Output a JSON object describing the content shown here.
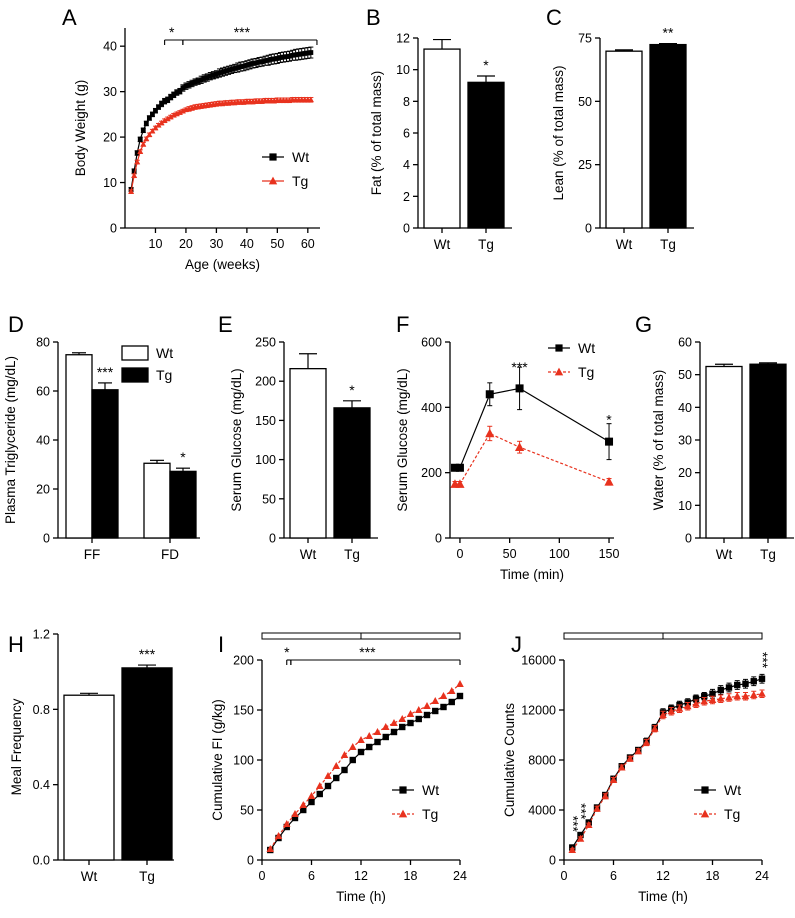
{
  "colors": {
    "wt": "#000000",
    "tg": "#e8321e",
    "axis": "#000000",
    "bar_wt": "#ffffff",
    "bar_tg": "#000000"
  },
  "chart_data": [
    {
      "id": "A",
      "letter": "A",
      "type": "line",
      "xlabel": "Age (weeks)",
      "ylabel": "Body Weight (g)",
      "xlim": [
        0,
        64
      ],
      "ylim": [
        0,
        44
      ],
      "xticks": [
        10,
        20,
        30,
        40,
        50,
        60
      ],
      "yticks": [
        0,
        10,
        20,
        30,
        40
      ],
      "series": [
        {
          "name": "Wt",
          "color": "#000000",
          "marker": "square",
          "dashed": false,
          "x": [
            2,
            3,
            4,
            5,
            6,
            7,
            8,
            9,
            10,
            11,
            12,
            13,
            14,
            15,
            16,
            17,
            18,
            19,
            20,
            21,
            22,
            23,
            24,
            25,
            26,
            27,
            28,
            29,
            30,
            31,
            32,
            33,
            34,
            35,
            36,
            37,
            38,
            39,
            40,
            41,
            42,
            43,
            44,
            45,
            46,
            47,
            48,
            49,
            50,
            51,
            52,
            53,
            54,
            55,
            56,
            57,
            58,
            59,
            60,
            61
          ],
          "y": [
            8.5,
            12.5,
            16.5,
            19.5,
            21.5,
            23,
            24.2,
            25,
            25.8,
            26.6,
            27.3,
            27.9,
            28.2,
            28.8,
            29.3,
            29.8,
            30.1,
            30.8,
            31.2,
            31.5,
            31.8,
            32.1,
            32.3,
            32.6,
            32.9,
            33.1,
            33.4,
            33.6,
            33.8,
            34.1,
            34.3,
            34.5,
            34.7,
            34.9,
            35.1,
            35.3,
            35.5,
            35.6,
            35.8,
            36,
            36.2,
            36.3,
            36.5,
            36.6,
            36.8,
            36.9,
            37.1,
            37.2,
            37.3,
            37.5,
            37.6,
            37.7,
            37.8,
            38,
            38.1,
            38.2,
            38.3,
            38.4,
            38.5,
            38.6
          ],
          "err": [
            0.4,
            0.5,
            0.5,
            0.5,
            0.5,
            0.5,
            0.5,
            0.5,
            0.5,
            0.5,
            0.6,
            0.6,
            0.6,
            0.6,
            0.6,
            0.6,
            0.6,
            0.7,
            0.7,
            0.7,
            0.7,
            0.7,
            0.7,
            0.8,
            0.8,
            0.8,
            0.8,
            0.8,
            0.8,
            0.9,
            0.9,
            0.9,
            0.9,
            0.9,
            0.9,
            1,
            1,
            1,
            1,
            1,
            1,
            1,
            1,
            1,
            1,
            1.1,
            1.1,
            1.1,
            1.1,
            1.1,
            1.1,
            1.1,
            1.1,
            1.1,
            1.2,
            1.2,
            1.2,
            1.2,
            1.2,
            1.2
          ]
        },
        {
          "name": "Tg",
          "color": "#e8321e",
          "marker": "triangle",
          "dashed": false,
          "x": [
            2,
            3,
            4,
            5,
            6,
            7,
            8,
            9,
            10,
            11,
            12,
            13,
            14,
            15,
            16,
            17,
            18,
            19,
            20,
            21,
            22,
            23,
            24,
            25,
            26,
            27,
            28,
            29,
            30,
            31,
            32,
            33,
            34,
            35,
            36,
            37,
            38,
            39,
            40,
            41,
            42,
            43,
            44,
            45,
            46,
            47,
            48,
            49,
            50,
            51,
            52,
            53,
            54,
            55,
            56,
            57,
            58,
            59,
            60,
            61
          ],
          "y": [
            8,
            11.5,
            14.5,
            16.8,
            18.4,
            19.6,
            20.5,
            21.3,
            22,
            22.6,
            23.1,
            23.6,
            24,
            24.4,
            24.8,
            25.1,
            25.4,
            25.7,
            26,
            26.2,
            26.4,
            26.6,
            26.7,
            26.8,
            26.9,
            27,
            27.1,
            27.2,
            27.3,
            27.4,
            27.4,
            27.5,
            27.5,
            27.6,
            27.6,
            27.7,
            27.7,
            27.7,
            27.8,
            27.8,
            27.8,
            27.9,
            27.9,
            27.9,
            28,
            28,
            28,
            28,
            28.1,
            28.1,
            28.1,
            28.1,
            28.1,
            28.2,
            28.2,
            28.2,
            28.2,
            28.2,
            28.2,
            28.2
          ],
          "err": [
            0.4,
            0.4,
            0.4,
            0.4,
            0.4,
            0.4,
            0.4,
            0.4,
            0.4,
            0.4,
            0.4,
            0.4,
            0.4,
            0.4,
            0.4,
            0.4,
            0.4,
            0.4,
            0.4,
            0.5,
            0.5,
            0.5,
            0.5,
            0.5,
            0.5,
            0.5,
            0.5,
            0.5,
            0.5,
            0.5,
            0.5,
            0.5,
            0.5,
            0.5,
            0.5,
            0.5,
            0.5,
            0.5,
            0.5,
            0.5,
            0.5,
            0.5,
            0.5,
            0.5,
            0.5,
            0.5,
            0.5,
            0.5,
            0.5,
            0.5,
            0.5,
            0.5,
            0.5,
            0.5,
            0.5,
            0.5,
            0.5,
            0.5,
            0.5,
            0.5
          ]
        }
      ],
      "significance": [
        {
          "text": "*",
          "x_from": 13,
          "x_to": 19
        },
        {
          "text": "***",
          "x_from": 19,
          "x_to": 63
        }
      ],
      "legend": "bottom-right"
    },
    {
      "id": "B",
      "letter": "B",
      "type": "bar",
      "categories": [
        "Wt",
        "Tg"
      ],
      "values": [
        11.3,
        9.2
      ],
      "errors": [
        0.6,
        0.4
      ],
      "ylabel": "Fat (% of total mass)",
      "ylim": [
        0,
        12
      ],
      "yticks": [
        0,
        2,
        4,
        6,
        8,
        10,
        12
      ],
      "stars": [
        "",
        "*"
      ]
    },
    {
      "id": "C",
      "letter": "C",
      "type": "bar",
      "categories": [
        "Wt",
        "Tg"
      ],
      "values": [
        69.8,
        72.4
      ],
      "errors": [
        0.5,
        0.4
      ],
      "ylabel": "Lean (% of total mass)",
      "ylim": [
        0,
        75
      ],
      "yticks": [
        0,
        25,
        50,
        75
      ],
      "stars": [
        "",
        "**"
      ]
    },
    {
      "id": "D",
      "letter": "D",
      "type": "grouped-bar",
      "categories": [
        "FF",
        "FD"
      ],
      "series": [
        {
          "name": "Wt",
          "values": [
            74.8,
            30.5
          ],
          "errors": [
            0.8,
            1.2
          ]
        },
        {
          "name": "Tg",
          "values": [
            60.5,
            27.2
          ],
          "errors": [
            2.8,
            1.3
          ]
        }
      ],
      "stars": [
        "***",
        "*"
      ],
      "ylabel": "Plasma Triglyceride (mg/dL)",
      "ylim": [
        0,
        80
      ],
      "yticks": [
        0,
        20,
        40,
        60,
        80
      ],
      "legend": "top-right"
    },
    {
      "id": "E",
      "letter": "E",
      "type": "bar",
      "categories": [
        "Wt",
        "Tg"
      ],
      "values": [
        216,
        166
      ],
      "errors": [
        19,
        9
      ],
      "ylabel": "Serum Glucose (mg/dL)",
      "ylim": [
        0,
        250
      ],
      "yticks": [
        0,
        50,
        100,
        150,
        200,
        250
      ],
      "stars": [
        "",
        "*"
      ]
    },
    {
      "id": "F",
      "letter": "F",
      "type": "line",
      "xlabel": "Time (min)",
      "ylabel": "Serum Glucose (mg/dL)",
      "xlim": [
        -10,
        155
      ],
      "ylim": [
        0,
        600
      ],
      "xticks": [
        0,
        50,
        100,
        150
      ],
      "yticks": [
        0,
        200,
        400,
        600
      ],
      "series": [
        {
          "name": "Wt",
          "color": "#000000",
          "marker": "square",
          "dashed": false,
          "x": [
            -5,
            0,
            30,
            60,
            150
          ],
          "y": [
            215,
            215,
            440,
            458,
            295
          ],
          "err": [
            10,
            10,
            35,
            65,
            55
          ]
        },
        {
          "name": "Tg",
          "color": "#e8321e",
          "marker": "triangle",
          "dashed": true,
          "x": [
            -5,
            0,
            30,
            60,
            150
          ],
          "y": [
            165,
            165,
            320,
            278,
            172
          ],
          "err": [
            8,
            8,
            22,
            18,
            10
          ]
        }
      ],
      "point_stars": [
        {
          "x": 60,
          "y": 520,
          "text": "***"
        },
        {
          "x": 150,
          "y": 360,
          "text": "*"
        }
      ],
      "legend": "top-right"
    },
    {
      "id": "G",
      "letter": "G",
      "type": "bar",
      "categories": [
        "Wt",
        "Tg"
      ],
      "values": [
        52.5,
        53.2
      ],
      "errors": [
        0.7,
        0.4
      ],
      "ylabel": "Water (% of total mass)",
      "ylim": [
        0,
        60
      ],
      "yticks": [
        0,
        10,
        20,
        30,
        40,
        50,
        60
      ],
      "stars": [
        "",
        ""
      ]
    },
    {
      "id": "H",
      "letter": "H",
      "type": "bar",
      "categories": [
        "Wt",
        "Tg"
      ],
      "values": [
        0.875,
        1.02
      ],
      "errors": [
        0.01,
        0.015
      ],
      "ylabel": "Meal Frequency",
      "ylim": [
        0,
        1.2
      ],
      "yticks": [
        "0.0",
        "0.4",
        "0.8",
        "1.2"
      ],
      "stars": [
        "",
        "***"
      ]
    },
    {
      "id": "I",
      "letter": "I",
      "type": "line",
      "xlabel": "Time (h)",
      "ylabel": "Cumulative FI (g/kg)",
      "xlim": [
        0,
        24
      ],
      "ylim": [
        0,
        200
      ],
      "xticks": [
        0,
        6,
        12,
        18,
        24
      ],
      "yticks": [
        0,
        50,
        100,
        150,
        200
      ],
      "series": [
        {
          "name": "Wt",
          "color": "#000000",
          "marker": "square",
          "dashed": false,
          "x": [
            1,
            2,
            3,
            4,
            5,
            6,
            7,
            8,
            9,
            10,
            11,
            12,
            13,
            14,
            15,
            16,
            17,
            18,
            19,
            20,
            21,
            22,
            23,
            24
          ],
          "y": [
            10,
            22,
            33,
            42,
            50,
            58,
            66,
            74,
            82,
            90,
            100,
            108,
            113,
            118,
            123,
            128,
            133,
            137,
            141,
            145,
            149,
            153,
            158,
            164
          ]
        },
        {
          "name": "Tg",
          "color": "#e8321e",
          "marker": "triangle",
          "dashed": true,
          "x": [
            1,
            2,
            3,
            4,
            5,
            6,
            7,
            8,
            9,
            10,
            11,
            12,
            13,
            14,
            15,
            16,
            17,
            18,
            19,
            20,
            21,
            22,
            23,
            24
          ],
          "y": [
            11,
            24,
            36,
            46,
            55,
            64,
            74,
            84,
            94,
            105,
            113,
            120,
            124,
            128,
            133,
            137,
            141,
            146,
            150,
            154,
            159,
            164,
            169,
            176
          ]
        }
      ],
      "significance": [
        {
          "text": "*",
          "x_from": 3,
          "x_to": 3.5
        },
        {
          "text": "***",
          "x_from": 3.5,
          "x_to": 24
        }
      ],
      "light_bar": {
        "x_from": 0,
        "x_to": 24,
        "split": 12
      },
      "legend": "bottom-right"
    },
    {
      "id": "J",
      "letter": "J",
      "type": "line",
      "xlabel": "Time (h)",
      "ylabel": "Cumulative Counts",
      "xlim": [
        0,
        24
      ],
      "ylim": [
        0,
        16000
      ],
      "xticks": [
        0,
        6,
        12,
        18,
        24
      ],
      "yticks": [
        0,
        4000,
        8000,
        12000,
        16000
      ],
      "series": [
        {
          "name": "Wt",
          "color": "#000000",
          "marker": "square",
          "dashed": false,
          "x": [
            1,
            2,
            3,
            4,
            5,
            6,
            7,
            8,
            9,
            10,
            11,
            12,
            13,
            14,
            15,
            16,
            17,
            18,
            19,
            20,
            21,
            22,
            23,
            24
          ],
          "y": [
            1000,
            2000,
            3000,
            4200,
            5200,
            6500,
            7500,
            8200,
            8800,
            9500,
            10600,
            11800,
            12100,
            12400,
            12600,
            12900,
            13100,
            13300,
            13600,
            13800,
            14000,
            14100,
            14300,
            14500
          ],
          "err": [
            100,
            150,
            150,
            200,
            200,
            200,
            200,
            200,
            200,
            250,
            250,
            300,
            300,
            300,
            300,
            300,
            300,
            350,
            350,
            350,
            350,
            350,
            350,
            350
          ]
        },
        {
          "name": "Tg",
          "color": "#e8321e",
          "marker": "triangle",
          "dashed": true,
          "x": [
            1,
            2,
            3,
            4,
            5,
            6,
            7,
            8,
            9,
            10,
            11,
            12,
            13,
            14,
            15,
            16,
            17,
            18,
            19,
            20,
            21,
            22,
            23,
            24
          ],
          "y": [
            800,
            1700,
            2800,
            4100,
            5100,
            6400,
            7400,
            8100,
            8700,
            9400,
            10500,
            11600,
            11900,
            12100,
            12300,
            12500,
            12700,
            12800,
            12900,
            13000,
            13100,
            13100,
            13200,
            13300
          ],
          "err": [
            100,
            150,
            150,
            200,
            200,
            200,
            200,
            200,
            200,
            250,
            250,
            300,
            300,
            300,
            300,
            300,
            300,
            300,
            300,
            300,
            300,
            300,
            300,
            300
          ]
        }
      ],
      "point_stars": [
        {
          "x": 1,
          "y": 2900,
          "text": "***"
        },
        {
          "x": 2,
          "y": 3900,
          "text": "***"
        },
        {
          "x": 24,
          "y": 16000,
          "text": "***"
        }
      ],
      "light_bar": {
        "x_from": 0,
        "x_to": 24,
        "split": 12
      },
      "legend": "bottom-right"
    }
  ]
}
